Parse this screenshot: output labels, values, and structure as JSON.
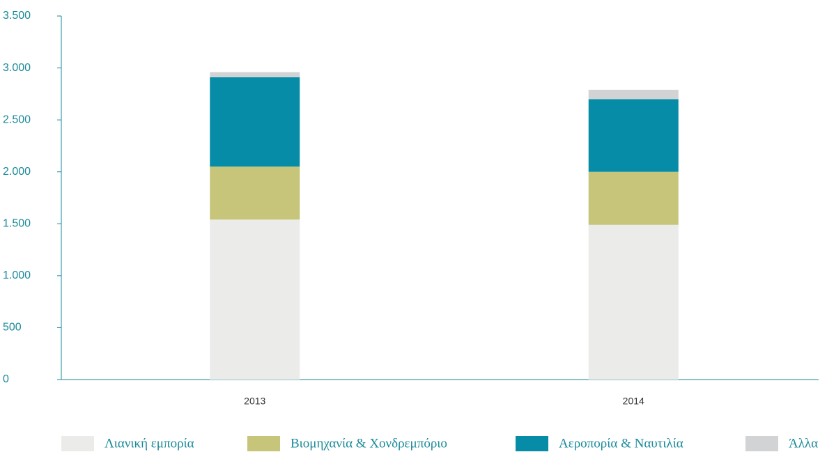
{
  "chart_data": {
    "type": "stacked_bar",
    "categories": [
      "2013",
      "2014"
    ],
    "series": [
      {
        "name": "Λιανική εμπορία",
        "color": "#ebebea",
        "values": [
          1540,
          1490
        ]
      },
      {
        "name": "Βιομηχανία & Χονδρεμπόριο",
        "color": "#c6c57a",
        "values": [
          510,
          510
        ]
      },
      {
        "name": "Αεροπορία & Ναυτιλία",
        "color": "#068ca7",
        "values": [
          860,
          700
        ]
      },
      {
        "name": "Άλλα",
        "color": "#d1d3d4",
        "values": [
          50,
          90
        ]
      }
    ],
    "ylim": [
      0,
      3500
    ],
    "yticks": [
      0,
      500,
      {
        "value": 1000,
        "label": "1.000"
      },
      {
        "value": 1500,
        "label": "1.500"
      },
      {
        "value": 2000,
        "label": "2.000"
      },
      {
        "value": 2500,
        "label": "2.500"
      },
      {
        "value": 3000,
        "label": "3.000"
      },
      {
        "value": 3500,
        "label": "3.500"
      }
    ],
    "legend": "bottom"
  }
}
